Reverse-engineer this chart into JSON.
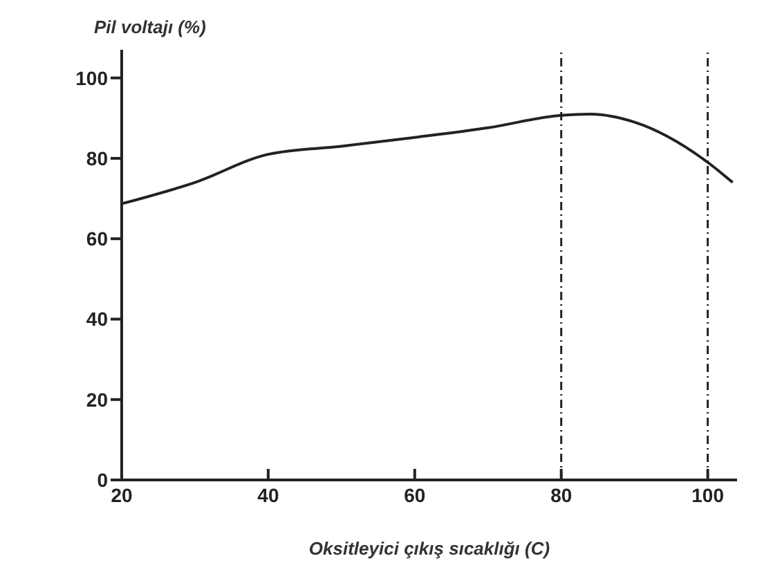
{
  "chart_data": {
    "type": "line",
    "xlabel": "Oksitleyici çıkış sıcaklığı (C)",
    "ylabel": "Pil voltajı (%)",
    "x": [
      20,
      30,
      40,
      50,
      60,
      70,
      80,
      84,
      90,
      100,
      103.4
    ],
    "series": [
      {
        "color": "#222222",
        "values": [
          68.7,
          74,
          81,
          83,
          85.2,
          87.6,
          90.7,
          91,
          89,
          79,
          74
        ]
      }
    ],
    "xlim": [
      20,
      104
    ],
    "xticks": [
      20,
      40,
      60,
      80,
      100
    ],
    "ylim": [
      0,
      107
    ],
    "yticks": [
      0,
      20,
      40,
      60,
      80,
      100
    ],
    "ref_lines": [
      {
        "axis": "x",
        "value": 80,
        "line_style": "dashdot",
        "color": "#222222"
      },
      {
        "axis": "x",
        "value": 100,
        "line_style": "dashdot",
        "color": "#222222"
      }
    ],
    "grid": false,
    "legend": false,
    "marker": "none",
    "line_style": "solid"
  }
}
